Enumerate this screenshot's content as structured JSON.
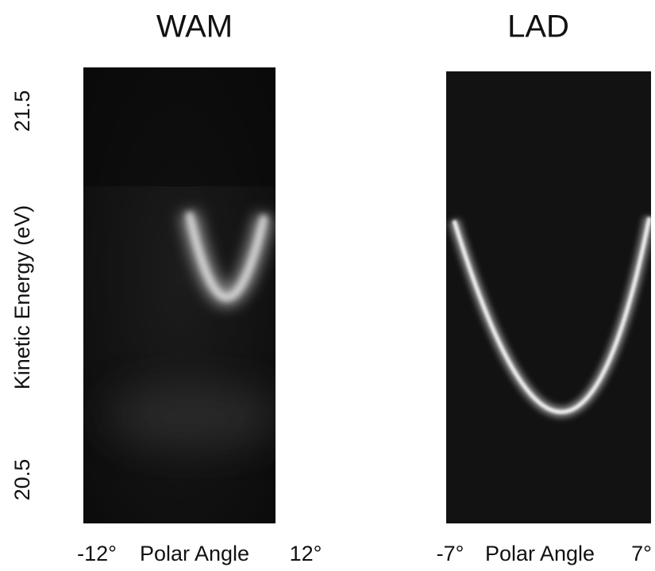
{
  "panels": [
    {
      "title": "WAM",
      "x_axis": {
        "min_label": "-12°",
        "label": "Polar Angle",
        "max_label": "12°"
      }
    },
    {
      "title": "LAD",
      "x_axis": {
        "min_label": "-7°",
        "label": "Polar Angle",
        "max_label": "7°"
      }
    }
  ],
  "y_axis": {
    "label": "Kinetic Energy (eV)",
    "ticks": [
      "21.5",
      "20.5"
    ]
  }
}
